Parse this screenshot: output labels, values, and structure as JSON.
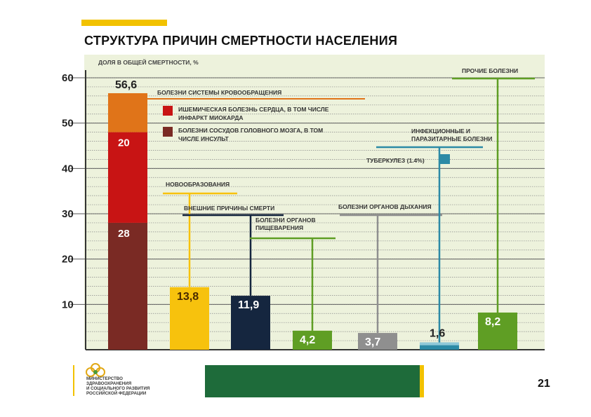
{
  "slide": {
    "title": "СТРУКТУРА ПРИЧИН СМЕРТНОСТИ НАСЕЛЕНИЯ",
    "page_number": "21",
    "ministry_lines": [
      "МИНИСТЕРСТВО",
      "ЗДРАВООХРАНЕНИЯ",
      "И СОЦИАЛЬНОГО РАЗВИТИЯ",
      "РОССИЙСКОЙ ФЕДЕРАЦИИ"
    ]
  },
  "chart_data": {
    "type": "bar",
    "ylabel": "ДОЛЯ В ОБЩЕЙ СМЕРТНОСТИ, %",
    "ylim": [
      0,
      60
    ],
    "yticks": [
      10,
      20,
      30,
      40,
      50,
      60
    ],
    "grid": true,
    "categories": [
      "БОЛЕЗНИ СИСТЕМЫ КРОВООБРАЩЕНИЯ",
      "НОВООБРАЗОВАНИЯ",
      "ВНЕШНИЕ ПРИЧИНЫ СМЕРТИ",
      "БОЛЕЗНИ ОРГАНОВ ПИЩЕВАРЕНИЯ",
      "БОЛЕЗНИ ОРГАНОВ ДЫХАНИЯ",
      "ИНФЕКЦИОННЫЕ И ПАРАЗИТАРНЫЕ БОЛЕЗНИ",
      "ПРОЧИЕ БОЛЕЗНИ"
    ],
    "values": [
      56.6,
      13.8,
      11.9,
      4.2,
      3.7,
      1.6,
      8.2
    ],
    "value_labels": [
      "56,6",
      "13,8",
      "11,9",
      "4,2",
      "3,7",
      "1,6",
      "8,2"
    ],
    "colors": [
      "#e07419",
      "#f7c20d",
      "#15263f",
      "#5f9e24",
      "#8f8f8f",
      "#2c8aa6",
      "#5f9e24"
    ],
    "label_lines": [
      [
        "БОЛЕЗНИ СИСТЕМЫ КРОВООБРАЩЕНИЯ"
      ],
      [
        "НОВООБРАЗОВАНИЯ"
      ],
      [
        "ВНЕШНИЕ ПРИЧИНЫ СМЕРТИ"
      ],
      [
        "БОЛЕЗНИ ОРГАНОВ",
        "ПИЩЕВАРЕНИЯ"
      ],
      [
        "БОЛЕЗНИ ОРГАНОВ ДЫХАНИЯ"
      ],
      [
        "ИНФЕКЦИОННЫЕ И",
        "ПАРАЗИТАРНЫЕ БОЛЕЗНИ"
      ],
      [
        "ПРОЧИЕ БОЛЕЗНИ"
      ]
    ],
    "stacked_first_bar": [
      {
        "name": "БОЛЕЗНИ СОСУДОВ ГОЛОВНОГО МОЗГА, В ТОМ ЧИСЛЕ ИНСУЛЬТ",
        "value": 28,
        "label": "28",
        "color": "#7a2a24",
        "legend_lines": [
          "БОЛЕЗНИ СОСУДОВ ГОЛОВНОГО МОЗГА, В ТОМ",
          "ЧИСЛЕ ИНСУЛЬТ"
        ]
      },
      {
        "name": "ИШЕМИЧЕСКАЯ БОЛЕЗНЬ СЕРДЦА, В ТОМ ЧИСЛЕ ИНФАРКТ МИОКАРДА",
        "value": 20,
        "label": "20",
        "color": "#c81414",
        "legend_lines": [
          "ИШЕМИЧЕСКАЯ БОЛЕЗНЬ СЕРДЦА, В ТОМ ЧИСЛЕ",
          "ИНФАРКТ МИОКАРДА"
        ]
      }
    ],
    "sub_item": {
      "label": "ТУБЕРКУЛЕЗ (1.4%)",
      "value": 1.4,
      "color": "#2c8aa6"
    }
  }
}
